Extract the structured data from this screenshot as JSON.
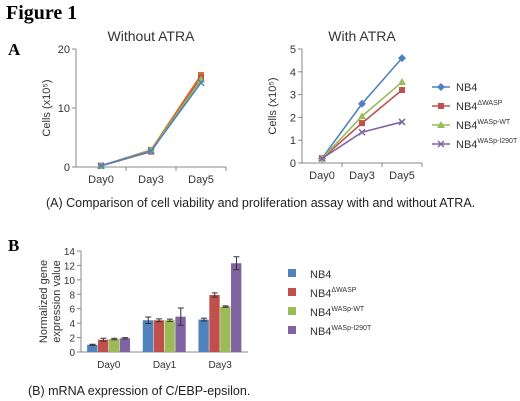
{
  "figure_title": "Figure 1",
  "panel_a": {
    "letter": "A",
    "caption": "(A) Comparison of cell viability and proliferation assay with and without ATRA."
  },
  "panel_b": {
    "letter": "B",
    "caption": "(B) mRNA expression of C/EBP-epsilon."
  },
  "chart_data": [
    {
      "type": "line",
      "title": "Without ATRA",
      "xlabel": "",
      "ylabel": "Cells (x10⁵)",
      "categories": [
        "Day0",
        "Day3",
        "Day5"
      ],
      "ylim": [
        0,
        20
      ],
      "yticks": [
        0,
        10,
        20
      ],
      "grid": false,
      "series": [
        {
          "values": [
            0.2,
            2.9,
            15.6
          ],
          "color": "#e0712b",
          "marker": "square"
        },
        {
          "values": [
            0.2,
            2.6,
            15.2
          ],
          "color": "#c0504d",
          "marker": "square"
        },
        {
          "values": [
            0.2,
            2.8,
            14.8
          ],
          "color": "#9bbb59",
          "marker": "triangle"
        },
        {
          "values": [
            0.2,
            2.7,
            14.3
          ],
          "color": "#4f81bd",
          "marker": "x"
        }
      ]
    },
    {
      "type": "line",
      "title": "With ATRA",
      "xlabel": "",
      "ylabel": "Cells (x10⁵)",
      "categories": [
        "Day0",
        "Day3",
        "Day5"
      ],
      "ylim": [
        0,
        5
      ],
      "yticks": [
        0,
        1,
        2,
        3,
        4,
        5
      ],
      "grid": false,
      "legend_position": "right",
      "series": [
        {
          "base": "NB4",
          "sup": "",
          "values": [
            0.2,
            2.6,
            4.6
          ],
          "color": "#4f81bd",
          "marker": "diamond"
        },
        {
          "base": "NB4",
          "sup": "ΔWASP",
          "values": [
            0.2,
            1.75,
            3.2
          ],
          "color": "#c0504d",
          "marker": "square"
        },
        {
          "base": "NB4",
          "sup": "WASp-WT",
          "values": [
            0.2,
            2.05,
            3.55
          ],
          "color": "#9bbb59",
          "marker": "triangle"
        },
        {
          "base": "NB4",
          "sup": "WASp-I290T",
          "values": [
            0.2,
            1.35,
            1.8
          ],
          "color": "#8064a2",
          "marker": "x"
        }
      ]
    },
    {
      "type": "bar",
      "title": "",
      "xlabel": "",
      "ylabel_lines": [
        "Normalized gene",
        "expression value"
      ],
      "categories": [
        "Day0",
        "Day1",
        "Day3"
      ],
      "ylim": [
        0,
        14
      ],
      "yticks": [
        0,
        2,
        4,
        6,
        8,
        10,
        12,
        14
      ],
      "grid": false,
      "legend_position": "right",
      "series": [
        {
          "base": "NB4",
          "sup": "",
          "values": [
            1.0,
            4.4,
            4.5
          ],
          "errors": [
            0.08,
            0.45,
            0.2
          ],
          "color": "#4f81bd"
        },
        {
          "base": "NB4",
          "sup": "ΔWASP",
          "values": [
            1.7,
            4.4,
            7.9
          ],
          "errors": [
            0.2,
            0.2,
            0.3
          ],
          "color": "#c0504d"
        },
        {
          "base": "NB4",
          "sup": "WASp-WT",
          "values": [
            1.8,
            4.4,
            6.3
          ],
          "errors": [
            0.1,
            0.15,
            0.1
          ],
          "color": "#9bbb59"
        },
        {
          "base": "NB4",
          "sup": "WASp-I290T",
          "values": [
            1.9,
            4.9,
            12.3
          ],
          "errors": [
            0.1,
            1.2,
            0.9
          ],
          "color": "#8064a2"
        }
      ]
    }
  ]
}
